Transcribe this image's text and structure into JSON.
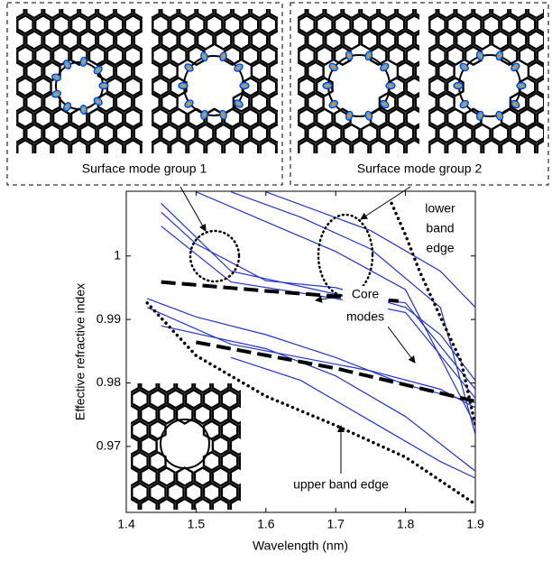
{
  "chart_data": {
    "type": "line",
    "x_label": "Wavelength (nm)",
    "y_label": "Effective refractive index",
    "xlim": [
      1.4,
      1.9
    ],
    "xticks": [
      1.4,
      1.5,
      1.6,
      1.7,
      1.8,
      1.9
    ],
    "ylim": [
      0.9596,
      1.0102
    ],
    "yticks": [
      0.97,
      0.98,
      0.99,
      1
    ],
    "inset_labels": [
      "Surface mode group 1",
      "Surface mode group 2"
    ],
    "annotations": {
      "lower_band_edge": [
        "lower",
        "band",
        "edge"
      ],
      "core_modes": [
        "Core",
        "modes"
      ],
      "upper_band_edge": "upper band edge"
    },
    "series": [
      {
        "color": "#2233cc",
        "style": "solid",
        "x": [
          1.45,
          1.5,
          1.6,
          1.7,
          1.8,
          1.85,
          1.9
        ],
        "values": [
          1.0069,
          1.0019,
          0.9961,
          0.995,
          0.9919,
          0.9876,
          0.9804
        ]
      },
      {
        "color": "#2233cc",
        "style": "solid",
        "x": [
          1.45,
          1.55,
          1.7,
          1.8,
          1.9
        ],
        "values": [
          1.0047,
          0.9959,
          0.9933,
          0.9911,
          0.9776
        ]
      },
      {
        "color": "#2233cc",
        "style": "solid",
        "x": [
          1.5,
          1.6,
          1.7,
          1.8,
          1.9
        ],
        "values": [
          1.0101,
          1.0054,
          1.0007,
          0.9947,
          0.9733
        ]
      },
      {
        "color": "#2233cc",
        "style": "solid",
        "x": [
          1.55,
          1.65,
          1.75,
          1.85,
          1.9
        ],
        "values": [
          1.0101,
          1.0061,
          1.0011,
          0.9919,
          0.9719
        ]
      },
      {
        "color": "#2233cc",
        "style": "solid",
        "x": [
          1.43,
          1.5,
          1.6,
          1.7,
          1.8,
          1.9
        ],
        "values": [
          0.9933,
          0.9904,
          0.9876,
          0.984,
          0.9797,
          0.9769
        ]
      },
      {
        "color": "#2233cc",
        "style": "solid",
        "x": [
          1.43,
          1.55,
          1.65,
          1.75,
          1.85,
          1.9
        ],
        "values": [
          0.9919,
          0.9861,
          0.984,
          0.9819,
          0.979,
          0.9761
        ]
      },
      {
        "color": "#2233cc",
        "style": "solid",
        "x": [
          1.45,
          1.6,
          1.7,
          1.8,
          1.9
        ],
        "values": [
          0.989,
          0.9854,
          0.9811,
          0.9747,
          0.9661
        ]
      },
      {
        "color": "#2233cc",
        "style": "solid",
        "x": [
          1.55,
          1.65,
          1.75,
          1.85,
          1.9
        ],
        "values": [
          0.984,
          0.9804,
          0.974,
          0.9676,
          0.965
        ]
      },
      {
        "color": "#2233cc",
        "style": "solid",
        "x": [
          1.6,
          1.75,
          1.85,
          1.9
        ],
        "values": [
          1.0101,
          1.004,
          0.9976,
          0.9919
        ]
      },
      {
        "color": "#2233cc",
        "style": "solid",
        "x": [
          1.45,
          1.55,
          1.7,
          1.8,
          1.9
        ],
        "values": [
          1.0083,
          0.9976,
          0.994,
          0.9926,
          0.979
        ]
      },
      {
        "color": "#000000",
        "style": "dashed",
        "x": [
          1.45,
          1.6,
          1.79
        ],
        "values": [
          0.9959,
          0.9945,
          0.9929
        ]
      },
      {
        "color": "#000000",
        "style": "dashed",
        "x": [
          1.5,
          1.7,
          1.9
        ],
        "values": [
          0.9864,
          0.9823,
          0.9771
        ]
      },
      {
        "color": "#000000",
        "style": "dotted",
        "x": [
          1.43,
          1.5,
          1.6,
          1.7,
          1.8,
          1.9
        ],
        "values": [
          0.9926,
          0.9843,
          0.9779,
          0.9733,
          0.9683,
          0.9609
        ]
      },
      {
        "color": "#000000",
        "style": "dotted",
        "x": [
          1.78,
          1.8,
          1.82,
          1.85,
          1.88,
          1.9
        ],
        "values": [
          1.0083,
          1.0033,
          0.9976,
          0.9904,
          0.9833,
          0.9733
        ]
      }
    ]
  }
}
